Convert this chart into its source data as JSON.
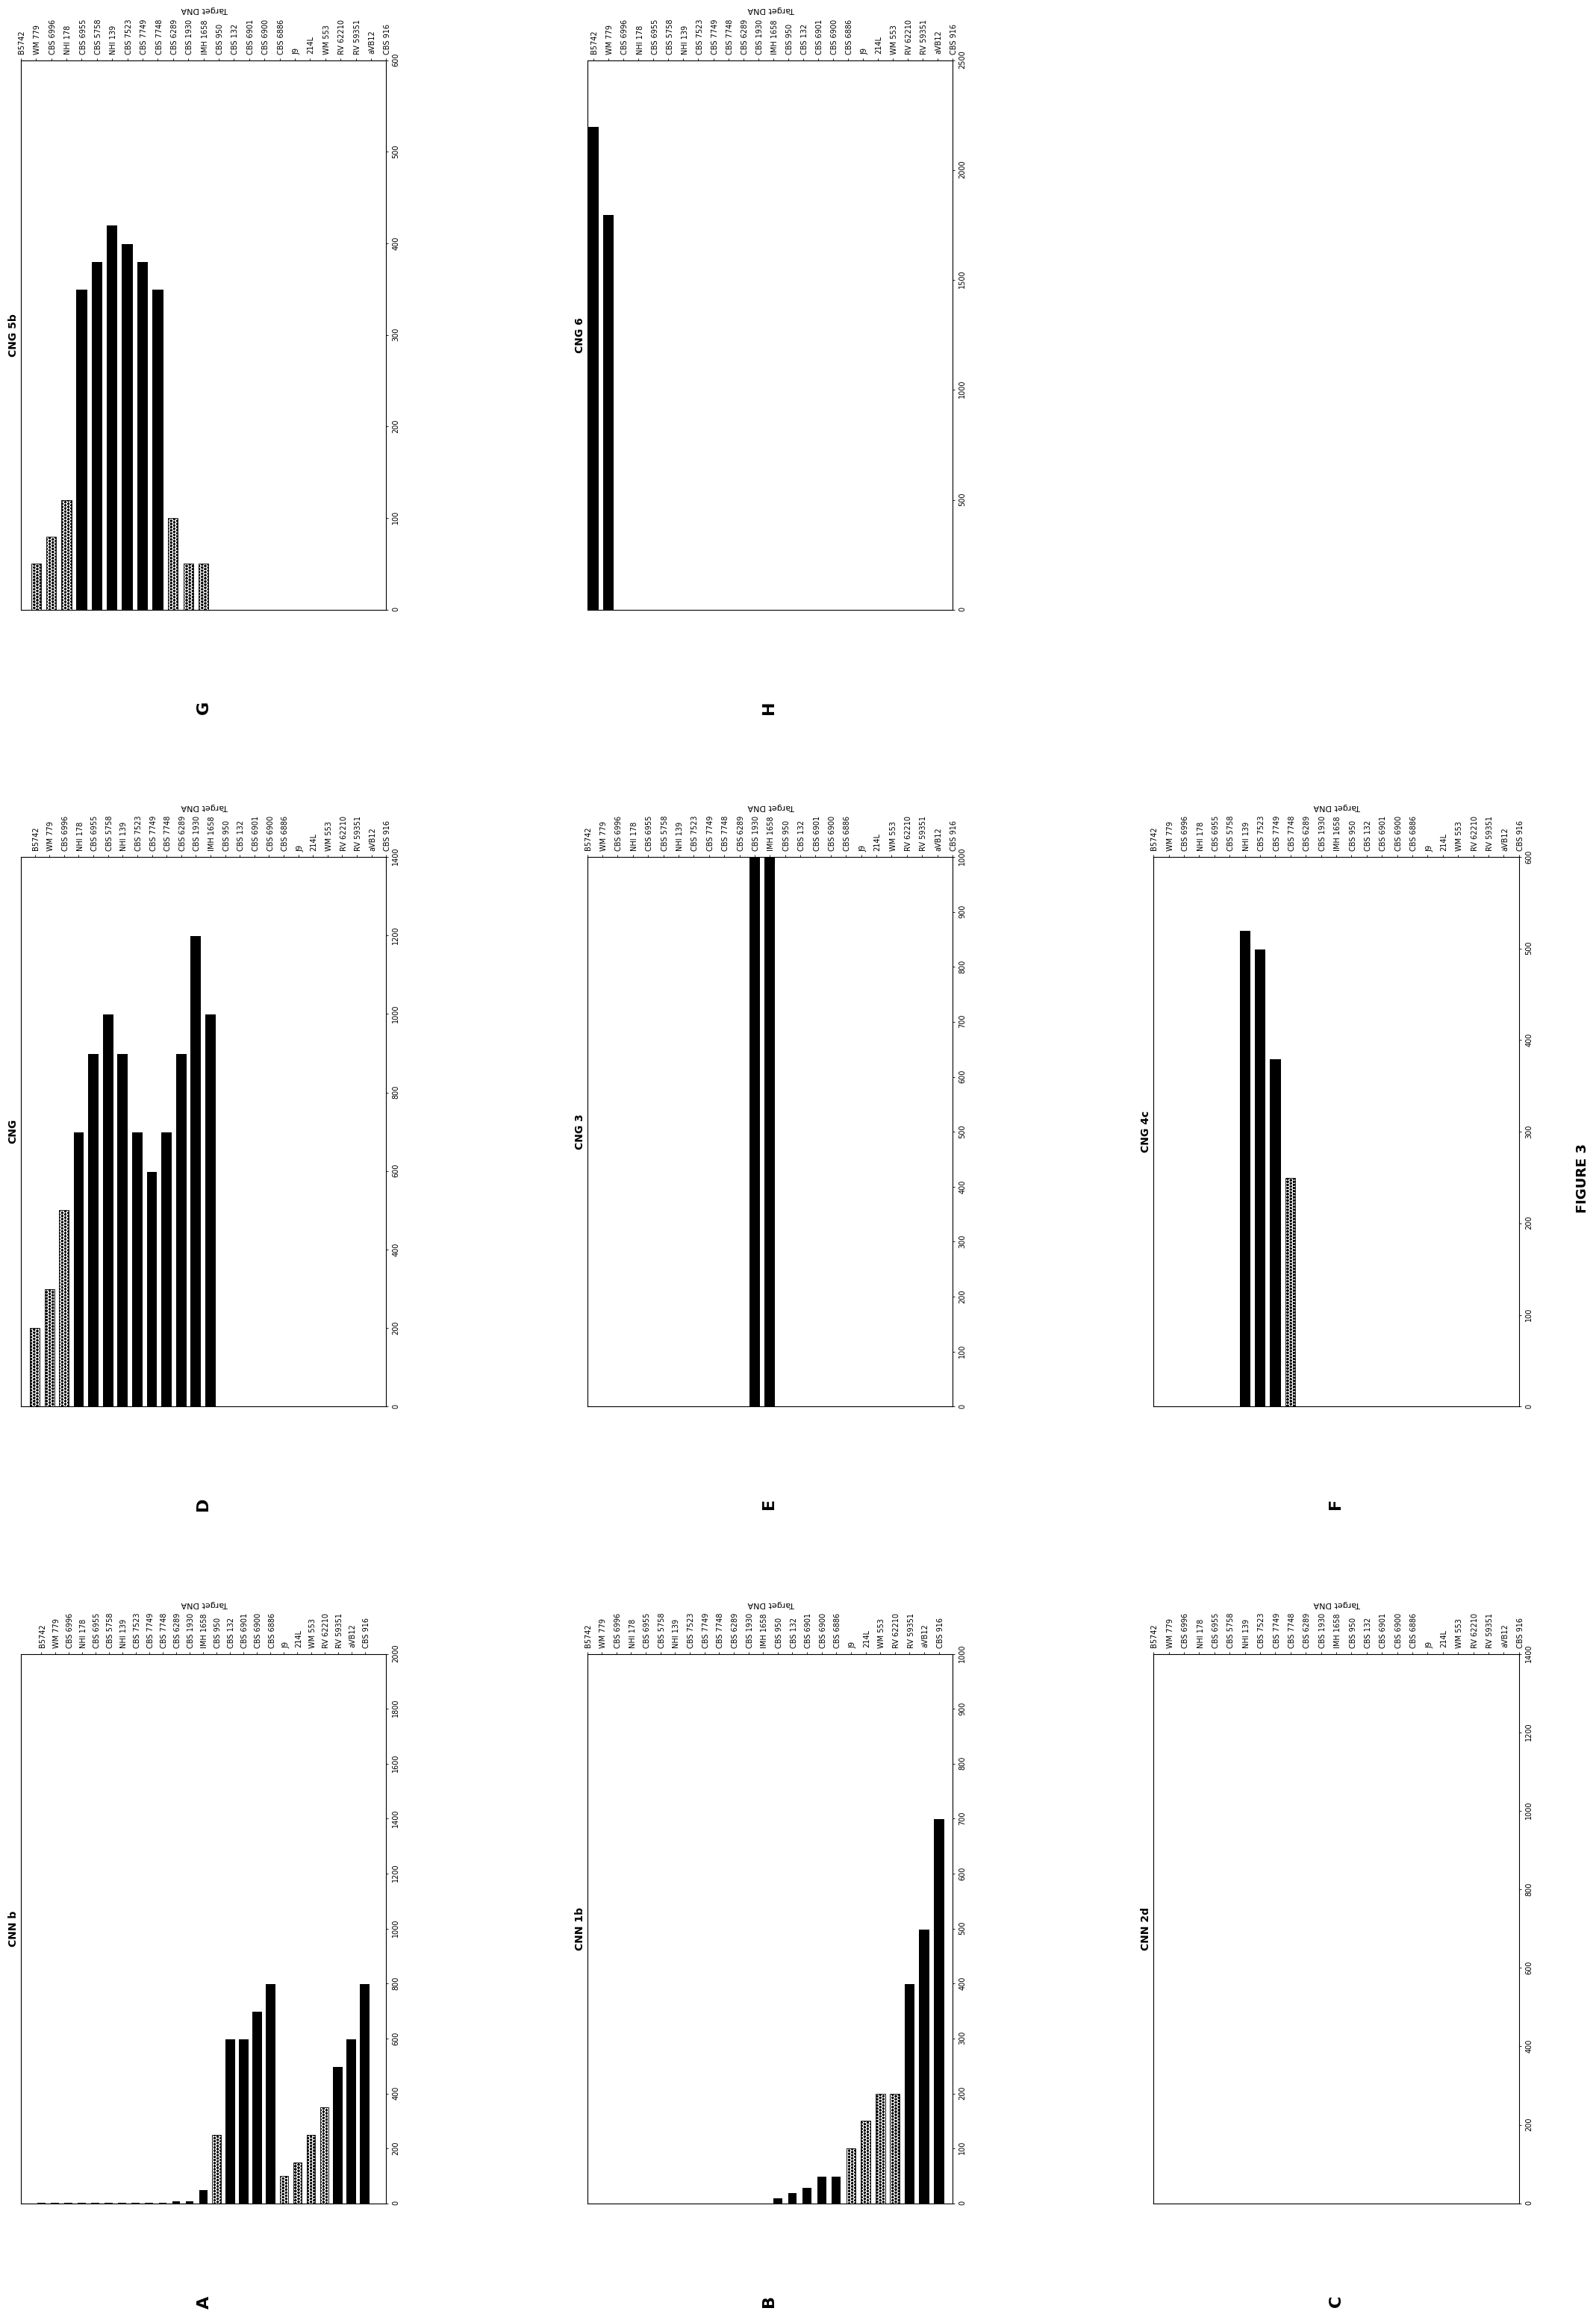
{
  "strains": [
    "CBS 916",
    "aVB12",
    "RV 59351",
    "RV 62210",
    "WM 553",
    "214L",
    "J9",
    "CBS 6886",
    "CBS 6900",
    "CBS 6901",
    "CBS 132",
    "CBS 950",
    "IMH 1658",
    "CBS 1930",
    "CBS 6289",
    "CBS 7748",
    "CBS 7749",
    "CBS 7523",
    "NHI 139",
    "CBS 5758",
    "CBS 6955",
    "NHI 178",
    "CBS 6996",
    "WM 779",
    "B5742"
  ],
  "panel_configs": {
    "A": {
      "title": "CNN b",
      "label": "A",
      "row": 0,
      "col": 0,
      "values": [
        800,
        600,
        500,
        350,
        250,
        150,
        100,
        800,
        700,
        600,
        600,
        250,
        50,
        10,
        10,
        5,
        5,
        5,
        5,
        5,
        5,
        5,
        5,
        5,
        5
      ],
      "xlim": 2000,
      "xticks": [
        0,
        200,
        400,
        600,
        800,
        1000,
        1200,
        1400,
        1600,
        1800,
        2000
      ]
    },
    "B": {
      "title": "CNN 1b",
      "label": "B",
      "row": 1,
      "col": 0,
      "values": [
        700,
        500,
        400,
        200,
        200,
        150,
        100,
        50,
        50,
        30,
        20,
        10,
        0,
        0,
        0,
        0,
        0,
        0,
        0,
        0,
        0,
        0,
        0,
        0,
        0
      ],
      "xlim": 1000,
      "xticks": [
        0,
        100,
        200,
        300,
        400,
        500,
        600,
        700,
        800,
        900,
        1000
      ]
    },
    "C": {
      "title": "CNN 2d",
      "label": "C",
      "row": 2,
      "col": 0,
      "values": [
        0,
        0,
        0,
        0,
        0,
        0,
        0,
        0,
        0,
        0,
        0,
        0,
        0,
        0,
        0,
        0,
        0,
        0,
        0,
        0,
        0,
        0,
        0,
        0,
        0
      ],
      "xlim": 1400,
      "xticks": [
        0,
        200,
        400,
        600,
        800,
        1000,
        1200,
        1400
      ]
    },
    "D": {
      "title": "CNG",
      "label": "D",
      "row": 0,
      "col": 1,
      "values": [
        0,
        0,
        0,
        0,
        0,
        0,
        0,
        0,
        0,
        0,
        0,
        0,
        1000,
        1200,
        900,
        700,
        600,
        700,
        900,
        1000,
        900,
        700,
        500,
        300,
        200
      ],
      "xlim": 1400,
      "xticks": [
        0,
        200,
        400,
        600,
        800,
        1000,
        1200,
        1400
      ]
    },
    "E": {
      "title": "CNG 3",
      "label": "E",
      "row": 1,
      "col": 1,
      "values": [
        0,
        0,
        0,
        0,
        0,
        0,
        0,
        0,
        0,
        0,
        0,
        0,
        1100,
        1000,
        0,
        0,
        0,
        0,
        0,
        0,
        0,
        0,
        0,
        0,
        0
      ],
      "xlim": 1000,
      "xticks": [
        0,
        100,
        200,
        300,
        400,
        500,
        600,
        700,
        800,
        900,
        1000
      ]
    },
    "F": {
      "title": "CNG 4c",
      "label": "F",
      "row": 2,
      "col": 1,
      "values": [
        0,
        0,
        0,
        0,
        0,
        0,
        0,
        0,
        0,
        0,
        0,
        0,
        0,
        0,
        0,
        250,
        380,
        500,
        520,
        0,
        0,
        0,
        0,
        0,
        0
      ],
      "xlim": 600,
      "xticks": [
        0,
        100,
        200,
        300,
        400,
        500,
        600
      ]
    },
    "G": {
      "title": "CNG 5b",
      "label": "G",
      "row": 0,
      "col": 2,
      "values": [
        0,
        0,
        0,
        0,
        0,
        0,
        0,
        0,
        0,
        0,
        0,
        0,
        50,
        50,
        100,
        350,
        380,
        400,
        420,
        380,
        350,
        120,
        80,
        50,
        0
      ],
      "xlim": 600,
      "xticks": [
        0,
        100,
        200,
        300,
        400,
        500,
        600
      ]
    },
    "H": {
      "title": "CNG 6",
      "label": "H",
      "row": 1,
      "col": 2,
      "values": [
        0,
        0,
        0,
        0,
        0,
        0,
        0,
        0,
        0,
        0,
        0,
        0,
        0,
        0,
        0,
        0,
        0,
        0,
        0,
        0,
        0,
        0,
        0,
        1800,
        2200
      ],
      "xlim": 2500,
      "xticks": [
        0,
        500,
        1000,
        1500,
        2000,
        2500
      ]
    }
  },
  "panel_order": [
    "A",
    "B",
    "C",
    "D",
    "E",
    "F",
    "G",
    "H"
  ],
  "figure_label": "FIGURE 3",
  "xlabel": "Target DNA"
}
